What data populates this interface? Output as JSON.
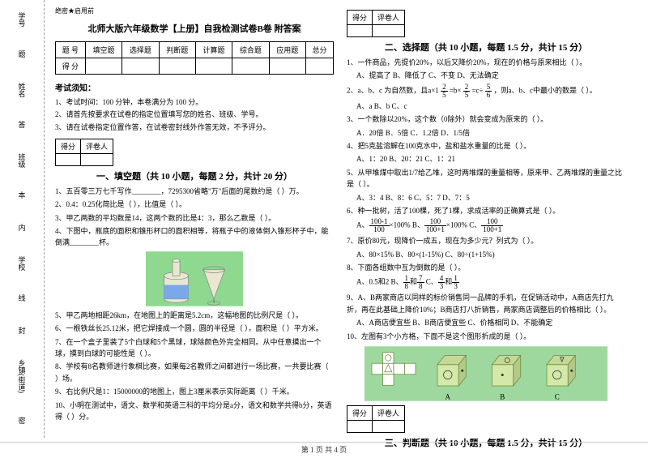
{
  "margin_labels": [
    "学号",
    "姓名",
    "班级",
    "学校",
    "乡镇(街道)"
  ],
  "margin_markers": [
    "题",
    "答",
    "本",
    "内",
    "线",
    "封",
    "密"
  ],
  "header_small": "绝密★启用前",
  "title": "北师大版六年级数学【上册】自我检测试卷B卷 附答案",
  "score_header": [
    "题 号",
    "填空题",
    "选择题",
    "判断题",
    "计算题",
    "综合题",
    "应用题",
    "总分"
  ],
  "score_row": "得 分",
  "notice_title": "考试须知：",
  "notices": [
    "1、考试时间：100 分钟，本卷满分为 100 分。",
    "2、请首先按要求在试卷的指定位置填写您的姓名、班级、学号。",
    "3、请在试卷指定位置作答，在试卷密封线外作答无效，不予评分。"
  ],
  "mini_table": {
    "c1": "得分",
    "c2": "评卷人"
  },
  "section1_title": "一、填空题（共 10 小题，每题 2 分，共计 20 分）",
  "q1_items": [
    "1、五百零三万七千写作________，7295300省略\"万\"后面的尾数约是（    ）万。",
    "2、0.4：0.25化简比是（        ），比值是（        ）。",
    "3、甲乙两数的平均数是14，这两个数的比是4：3，那么乙数是（    ）。",
    "4、下图中，瓶底的面积和锥形杯口的面积相等，将瓶子中的液体倒入锥形杯子中，能倒满________杯。"
  ],
  "q1_items_b": [
    "5、甲乙两地相距26km，在地图上的距离是5.2cm，这幅地图的比例尺是（        ）。",
    "6、一根铁丝长25.12米，把它焊接成一个圆，圆的半径是（        ），面积是（        ）平方米。",
    "7、在一个盒子里装了5个白球和5个黑球，球除颜色外完全相同。从中任意摸出一个球，摸到白球的可能性是（        ）。",
    "8、学校有8名教师进行象棋比赛，如果每2名教师之间都进行一场比赛，一共要比赛（    ）场。",
    "9、右比例尺是1：15000000的地图上，图上3厘米表示实际距离（    ）千米。",
    "10、小明在测试中，语文、数学和英语三科的平均分是a分，语文和数学共得b分，英语得（    ）分。"
  ],
  "section2_title": "二、选择题（共 10 小题，每题 1.5 分，共计 15 分）",
  "q2_items": [
    {
      "stem": "1、一件商品，先提价20%，以后又降价20%，现在的价格与原来相比（    ）。",
      "opts": "A、提高了    B、降低了    C、不变    D、无法确定"
    },
    {
      "stem_html": "2、a、b、c 为自然数，且a×1 <span class='frac'><span class='n'>2</span><span class='d'>5</span></span> =b× <span class='frac'><span class='n'>2</span><span class='d'>5</span></span> =c÷ <span class='frac'><span class='n'>5</span><span class='d'>6</span></span> ，则a、b、c中最小的数是（    ）。",
      "opts": "A、a    B、b    C、c"
    },
    {
      "stem": "3、一个数除以20%，这个数（0除外）就会变成为原来的（    ）。",
      "opts": "A．20倍    B．5倍    C．1.2倍    D．1/5倍"
    },
    {
      "stem": "4、把5克盐溶解在100克水中，盐和盐水重量的比是（    ）。",
      "opts": "A、1：20    B、20：21    C、1：21"
    },
    {
      "stem": "5、从甲堆煤中取出1/7给乙堆，这时两堆煤的重量相等，原来甲、乙两堆煤的重量之比是（    ）。",
      "opts": "A、3：4    B、8：6    C、5：7    D、7：5"
    },
    {
      "stem": "6、种一批树，活了100棵，死了1棵，求成活率的正确算式是（    ）。",
      "opts_html": "A、<span class='frac'><span class='n'>100-1</span><span class='d'>100</span></span>×100%    B、<span class='frac'><span class='n'>100</span><span class='d'>100+1</span></span>×100%    C、<span class='frac'><span class='n'>100</span><span class='d'>100+1</span></span>"
    },
    {
      "stem": "7、原价80元，现降价一成五，现在为多少元？列式为（    ）。",
      "opts": "A、80×15%    B、80×(1-15%)    C、80÷(1+15%)"
    },
    {
      "stem": "8、下面各组数中互为倒数的是（    ）。",
      "opts_html": "A、0.5和2    B、<span class='frac'><span class='n'>1</span><span class='d'>8</span></span>和<span class='frac'><span class='n'>7</span><span class='d'>8</span></span>    C、<span class='frac'><span class='n'>4</span><span class='d'>3</span></span>和<span class='frac'><span class='n'>1</span><span class='d'>3</span></span>"
    },
    {
      "stem": "9、A、B两家商店以同样的标价销售同一品牌的手机，在促销活动中，A商店先打九折，再在此基础上降价10%；B商店打八折销售，两家商店调整后的价格相比（    ）。",
      "opts": "A、A商店便宜些    B、B商店便宜些    C、价格相同    D、不能确定"
    },
    {
      "stem": "10、左图有3个小方格，下面不是这个图形折成的是（    ）。"
    }
  ],
  "section3_title": "三、判断题（共 10 小题，每题 1.5 分，共计 15 分）",
  "footer": "第 1 页 共 4 页",
  "bottle_colors": {
    "bg": "#8fd88f",
    "bottle": "#e8e8d0",
    "liquid": "#7aa8e8"
  },
  "cube_colors": {
    "bg": "#9ed89e",
    "face": "#d4e8a8",
    "edge": "#6a8a3a"
  }
}
